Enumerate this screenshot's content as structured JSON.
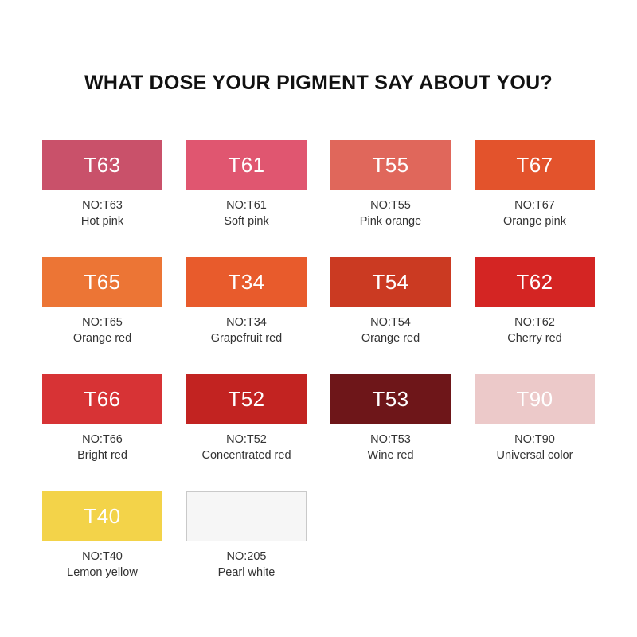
{
  "title": "WHAT DOSE YOUR PIGMENT SAY ABOUT YOU?",
  "colors": [
    {
      "code": "T63",
      "no": "NO:T63",
      "name": "Hot pink",
      "hex": "#c9516a"
    },
    {
      "code": "T61",
      "no": "NO:T61",
      "name": "Soft pink",
      "hex": "#e05670"
    },
    {
      "code": "T55",
      "no": "NO:T55",
      "name": "Pink orange",
      "hex": "#e0675b"
    },
    {
      "code": "T67",
      "no": "NO:T67",
      "name": "Orange pink",
      "hex": "#e3532c"
    },
    {
      "code": "T65",
      "no": "NO:T65",
      "name": "Orange red",
      "hex": "#ec7535"
    },
    {
      "code": "T34",
      "no": "NO:T34",
      "name": "Grapefruit red",
      "hex": "#e85b2c"
    },
    {
      "code": "T54",
      "no": "NO:T54",
      "name": "Orange red",
      "hex": "#cb3a22"
    },
    {
      "code": "T62",
      "no": "NO:T62",
      "name": "Cherry red",
      "hex": "#d42523"
    },
    {
      "code": "T66",
      "no": "NO:T66",
      "name": "Bright red",
      "hex": "#d73335"
    },
    {
      "code": "T52",
      "no": "NO:T52",
      "name": "Concentrated red",
      "hex": "#c22321"
    },
    {
      "code": "T53",
      "no": "NO:T53",
      "name": "Wine red",
      "hex": "#6e1619"
    },
    {
      "code": "T90",
      "no": "NO:T90",
      "name": "Universal color",
      "hex": "#ecc9c9"
    },
    {
      "code": "T40",
      "no": "NO:T40",
      "name": "Lemon yellow",
      "hex": "#f3d349"
    },
    {
      "code": "",
      "no": "NO:205",
      "name": "Pearl white",
      "hex": "#f6f6f6"
    }
  ]
}
